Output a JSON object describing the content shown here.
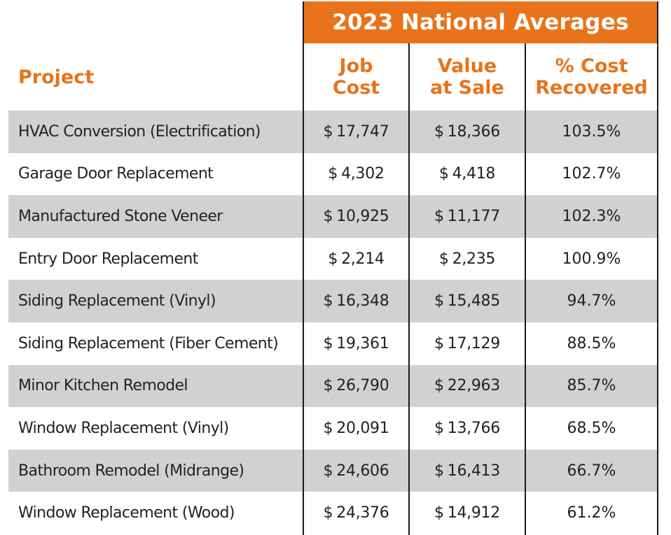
{
  "banner": "2023 National Averages",
  "headers": {
    "project": "Project",
    "job_cost": [
      "Job",
      "Cost"
    ],
    "value_at_sale": [
      "Value",
      "at Sale"
    ],
    "pct_recovered": [
      "% Cost",
      "Recovered"
    ]
  },
  "rows": [
    {
      "project": "HVAC Conversion (Electrification)",
      "job_cost": "17,747",
      "value": "18,366",
      "pct": "103.5%"
    },
    {
      "project": "Garage Door Replacement",
      "job_cost": "4,302",
      "value": "4,418",
      "pct": "102.7%"
    },
    {
      "project": "Manufactured Stone Veneer",
      "job_cost": "10,925",
      "value": "11,177",
      "pct": "102.3%"
    },
    {
      "project": "Entry Door Replacement",
      "job_cost": "2,214",
      "value": "2,235",
      "pct": "100.9%"
    },
    {
      "project": "Siding Replacement (Vinyl)",
      "job_cost": "16,348",
      "value": "15,485",
      "pct": "94.7%"
    },
    {
      "project": "Siding Replacement (Fiber Cement)",
      "job_cost": "19,361",
      "value": "17,129",
      "pct": "88.5%"
    },
    {
      "project": "Minor Kitchen Remodel",
      "job_cost": "26,790",
      "value": "22,963",
      "pct": "85.7%"
    },
    {
      "project": "Window Replacement (Vinyl)",
      "job_cost": "20,091",
      "value": "13,766",
      "pct": "68.5%"
    },
    {
      "project": "Bathroom Remodel (Midrange)",
      "job_cost": "24,606",
      "value": "16,413",
      "pct": "66.7%"
    },
    {
      "project": "Window Replacement (Wood)",
      "job_cost": "24,376",
      "value": "14,912",
      "pct": "61.2%"
    }
  ],
  "currency_symbol": "$",
  "colors": {
    "accent": "#e8731a",
    "shade": "#d0d1d3",
    "text": "#222222"
  }
}
